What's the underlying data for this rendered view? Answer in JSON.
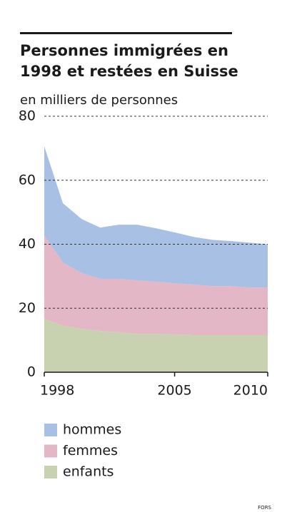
{
  "chart_data": {
    "type": "stacked_area",
    "title": [
      "Personnes immigrées en",
      "1998 et restées en Suisse"
    ],
    "subtitle": "en milliers de personnes",
    "x": [
      1998,
      1999,
      2000,
      2001,
      2002,
      2003,
      2004,
      2005,
      2006,
      2007,
      2008,
      2009,
      2010
    ],
    "series": [
      {
        "name": "hommes",
        "color": "#a7c0e4",
        "values": [
          27.8,
          18.5,
          16.9,
          16.0,
          16.9,
          17.4,
          16.7,
          15.9,
          14.9,
          14.5,
          14.1,
          14.0,
          13.5
        ]
      },
      {
        "name": "femmes",
        "color": "#e3b7c5",
        "values": [
          26.1,
          19.8,
          17.4,
          16.3,
          16.7,
          16.7,
          16.3,
          16.0,
          15.8,
          15.3,
          15.3,
          14.9,
          14.9
        ]
      },
      {
        "name": "enfants",
        "color": "#c8d2b1",
        "values": [
          16.7,
          14.5,
          13.6,
          12.9,
          12.5,
          12.0,
          12.0,
          11.8,
          11.6,
          11.6,
          11.6,
          11.6,
          11.6
        ]
      }
    ],
    "xlim": [
      1998,
      2010
    ],
    "xticks": [
      1998,
      2005,
      2010
    ],
    "ylim": [
      0,
      80
    ],
    "yticks": [
      0,
      20,
      40,
      60,
      80
    ],
    "grid": true,
    "source": "FORS"
  }
}
